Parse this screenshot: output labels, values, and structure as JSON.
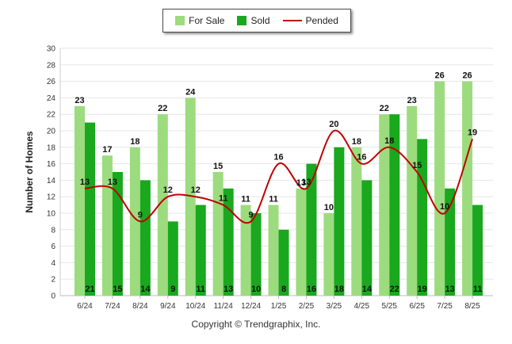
{
  "chart_data": {
    "type": "bar",
    "ylabel": "Number of Homes",
    "xlabel": "",
    "ylim": [
      0,
      30
    ],
    "ytick_step": 2,
    "categories": [
      "6/24",
      "7/24",
      "8/24",
      "9/24",
      "10/24",
      "11/24",
      "12/24",
      "1/25",
      "2/25",
      "3/25",
      "4/25",
      "5/25",
      "6/25",
      "7/25",
      "8/25"
    ],
    "series": [
      {
        "name": "For Sale",
        "kind": "bar",
        "color": "#9ddb7f",
        "values": [
          23,
          17,
          18,
          22,
          24,
          15,
          11,
          11,
          13,
          10,
          18,
          22,
          23,
          26,
          26
        ]
      },
      {
        "name": "Sold",
        "kind": "bar",
        "color": "#19a81e",
        "values": [
          21,
          15,
          14,
          9,
          11,
          13,
          10,
          8,
          16,
          18,
          14,
          22,
          19,
          13,
          11
        ]
      },
      {
        "name": "Pended",
        "kind": "line",
        "color": "#c00000",
        "values": [
          13,
          13,
          9,
          12,
          12,
          11,
          9,
          16,
          13,
          20,
          16,
          18,
          15,
          10,
          19
        ]
      }
    ],
    "grid": true,
    "legend_position": "top"
  },
  "footer": {
    "copyright": "Copyright © Trendgraphix, Inc."
  }
}
